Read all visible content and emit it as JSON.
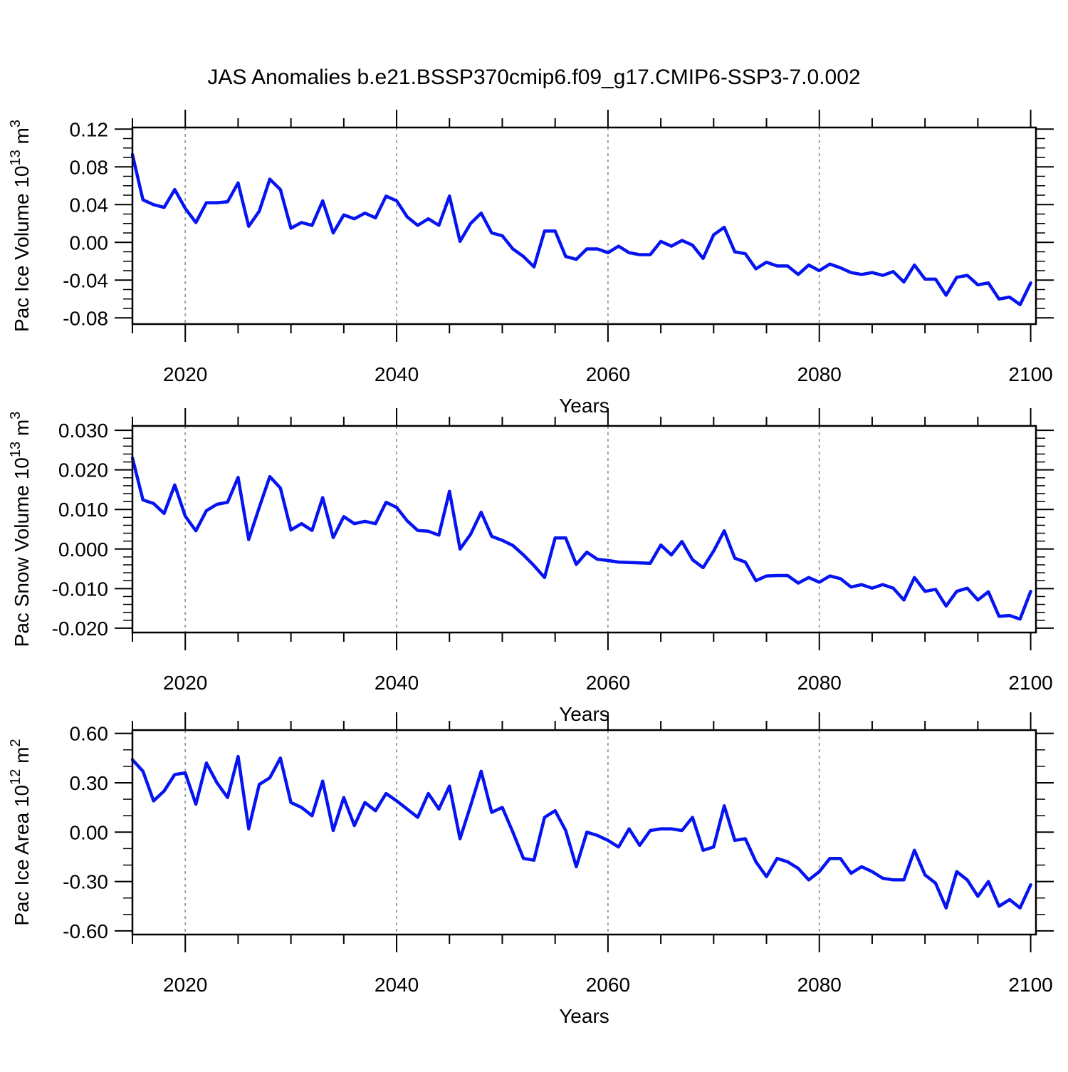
{
  "page": {
    "title": "JAS Anomalies b.e21.BSSP370cmip6.f09_g17.CMIP6-SSP3-7.0.002",
    "background": "#ffffff"
  },
  "style": {
    "line_color": "#0514f0",
    "grid_color": "#999999",
    "axis_color": "#000000",
    "text_color": "#000000"
  },
  "x_axis": {
    "label": "Years",
    "xlim": [
      2015,
      2100.5
    ],
    "ticks": [
      2020,
      2040,
      2060,
      2080,
      2100
    ],
    "tick_labels": [
      "2020",
      "2040",
      "2060",
      "2080",
      "2100"
    ],
    "minor_step": 5,
    "gridline_years": [
      2020,
      2040,
      2060,
      2080
    ],
    "grid_style": "dashed-vertical"
  },
  "chart_data": [
    {
      "type": "line",
      "name": "pac-ice-volume",
      "ylabel_parts": [
        "Pac Ice Volume 10",
        {
          "sup": "13"
        },
        " m",
        {
          "sup": "3"
        }
      ],
      "xlabel": "Years",
      "legend": "none",
      "x_start": 2015,
      "x_end": 2100,
      "x_step": 1,
      "ylim": [
        -0.0866,
        0.1217
      ],
      "yticks": [
        0.12,
        0.08,
        0.04,
        0.0,
        -0.04,
        -0.08
      ],
      "ytick_labels": [
        "0.12",
        "0.08",
        "0.04",
        "0.00",
        "-0.04",
        "-0.08"
      ],
      "y_minor_step": 0.01,
      "values": [
        0.093,
        0.045,
        0.04,
        0.037,
        0.056,
        0.036,
        0.021,
        0.042,
        0.042,
        0.043,
        0.063,
        0.017,
        0.033,
        0.067,
        0.056,
        0.015,
        0.021,
        0.018,
        0.044,
        0.01,
        0.029,
        0.025,
        0.031,
        0.026,
        0.049,
        0.044,
        0.027,
        0.018,
        0.025,
        0.018,
        0.049,
        0.001,
        0.02,
        0.031,
        0.01,
        0.007,
        -0.007,
        -0.015,
        -0.026,
        0.012,
        0.012,
        -0.015,
        -0.018,
        -0.007,
        -0.007,
        -0.011,
        -0.004,
        -0.011,
        -0.013,
        -0.013,
        0.001,
        -0.004,
        0.002,
        -0.003,
        -0.017,
        0.008,
        0.016,
        -0.01,
        -0.012,
        -0.028,
        -0.021,
        -0.025,
        -0.025,
        -0.034,
        -0.024,
        -0.03,
        -0.023,
        -0.027,
        -0.032,
        -0.034,
        -0.032,
        -0.035,
        -0.031,
        -0.042,
        -0.024,
        -0.039,
        -0.039,
        -0.056,
        -0.037,
        -0.035,
        -0.045,
        -0.043,
        -0.06,
        -0.058,
        -0.066,
        -0.043
      ]
    },
    {
      "type": "line",
      "name": "pac-snow-volume",
      "ylabel_parts": [
        "Pac Snow Volume 10",
        {
          "sup": "13"
        },
        " m",
        {
          "sup": "3"
        }
      ],
      "xlabel": "Years",
      "legend": "none",
      "x_start": 2015,
      "x_end": 2100,
      "x_step": 1,
      "ylim": [
        -0.0211,
        0.0311
      ],
      "yticks": [
        0.03,
        0.02,
        0.01,
        0.0,
        -0.01,
        -0.02
      ],
      "ytick_labels": [
        "0.030",
        "0.020",
        "0.010",
        "0.000",
        "-0.010",
        "-0.020"
      ],
      "y_minor_step": 0.002,
      "values": [
        0.023,
        0.0124,
        0.0115,
        0.009,
        0.0162,
        0.0083,
        0.0046,
        0.0097,
        0.0113,
        0.0118,
        0.0181,
        0.0024,
        0.0105,
        0.0183,
        0.0154,
        0.0048,
        0.0064,
        0.0047,
        0.013,
        0.0029,
        0.0082,
        0.0064,
        0.007,
        0.0064,
        0.0118,
        0.0105,
        0.0071,
        0.0047,
        0.0045,
        0.0035,
        0.0146,
        0.0,
        0.0037,
        0.0093,
        0.0032,
        0.0022,
        0.0009,
        -0.0015,
        -0.0042,
        -0.0072,
        0.0028,
        0.0028,
        -0.0039,
        -0.0008,
        -0.0026,
        -0.0029,
        -0.0033,
        -0.0034,
        -0.0035,
        -0.0036,
        0.001,
        -0.0015,
        0.0019,
        -0.0027,
        -0.0047,
        -0.0005,
        0.0046,
        -0.0023,
        -0.0033,
        -0.008,
        -0.0068,
        -0.0067,
        -0.0067,
        -0.0086,
        -0.0072,
        -0.0084,
        -0.0068,
        -0.0075,
        -0.0096,
        -0.009,
        -0.0099,
        -0.009,
        -0.0099,
        -0.0129,
        -0.0072,
        -0.0107,
        -0.0102,
        -0.0144,
        -0.0107,
        -0.0099,
        -0.0129,
        -0.0108,
        -0.017,
        -0.0168,
        -0.0177,
        -0.0107
      ]
    },
    {
      "type": "line",
      "name": "pac-ice-area",
      "ylabel_parts": [
        "Pac Ice Area 10",
        {
          "sup": "12"
        },
        " m",
        {
          "sup": "2"
        }
      ],
      "xlabel": "Years",
      "legend": "none",
      "x_start": 2015,
      "x_end": 2100,
      "x_step": 1,
      "ylim": [
        -0.622,
        0.62
      ],
      "yticks": [
        0.6,
        0.3,
        0.0,
        -0.3,
        -0.6
      ],
      "ytick_labels": [
        "0.60",
        "0.30",
        "0.00",
        "-0.30",
        "-0.60"
      ],
      "y_minor_step": 0.1,
      "values": [
        0.44,
        0.37,
        0.19,
        0.25,
        0.35,
        0.36,
        0.17,
        0.42,
        0.3,
        0.21,
        0.46,
        0.02,
        0.29,
        0.33,
        0.45,
        0.18,
        0.15,
        0.1,
        0.31,
        0.01,
        0.21,
        0.04,
        0.18,
        0.13,
        0.235,
        0.19,
        0.14,
        0.09,
        0.235,
        0.14,
        0.28,
        -0.04,
        0.16,
        0.37,
        0.12,
        0.15,
        0.0,
        -0.16,
        -0.17,
        0.09,
        0.13,
        0.01,
        -0.21,
        0.0,
        -0.02,
        -0.05,
        -0.09,
        0.02,
        -0.08,
        0.01,
        0.02,
        0.02,
        0.01,
        0.09,
        -0.11,
        -0.09,
        0.16,
        -0.05,
        -0.04,
        -0.18,
        -0.27,
        -0.16,
        -0.18,
        -0.22,
        -0.29,
        -0.24,
        -0.16,
        -0.16,
        -0.25,
        -0.21,
        -0.24,
        -0.28,
        -0.29,
        -0.29,
        -0.11,
        -0.26,
        -0.31,
        -0.46,
        -0.24,
        -0.29,
        -0.39,
        -0.3,
        -0.45,
        -0.41,
        -0.46,
        -0.32
      ]
    }
  ]
}
